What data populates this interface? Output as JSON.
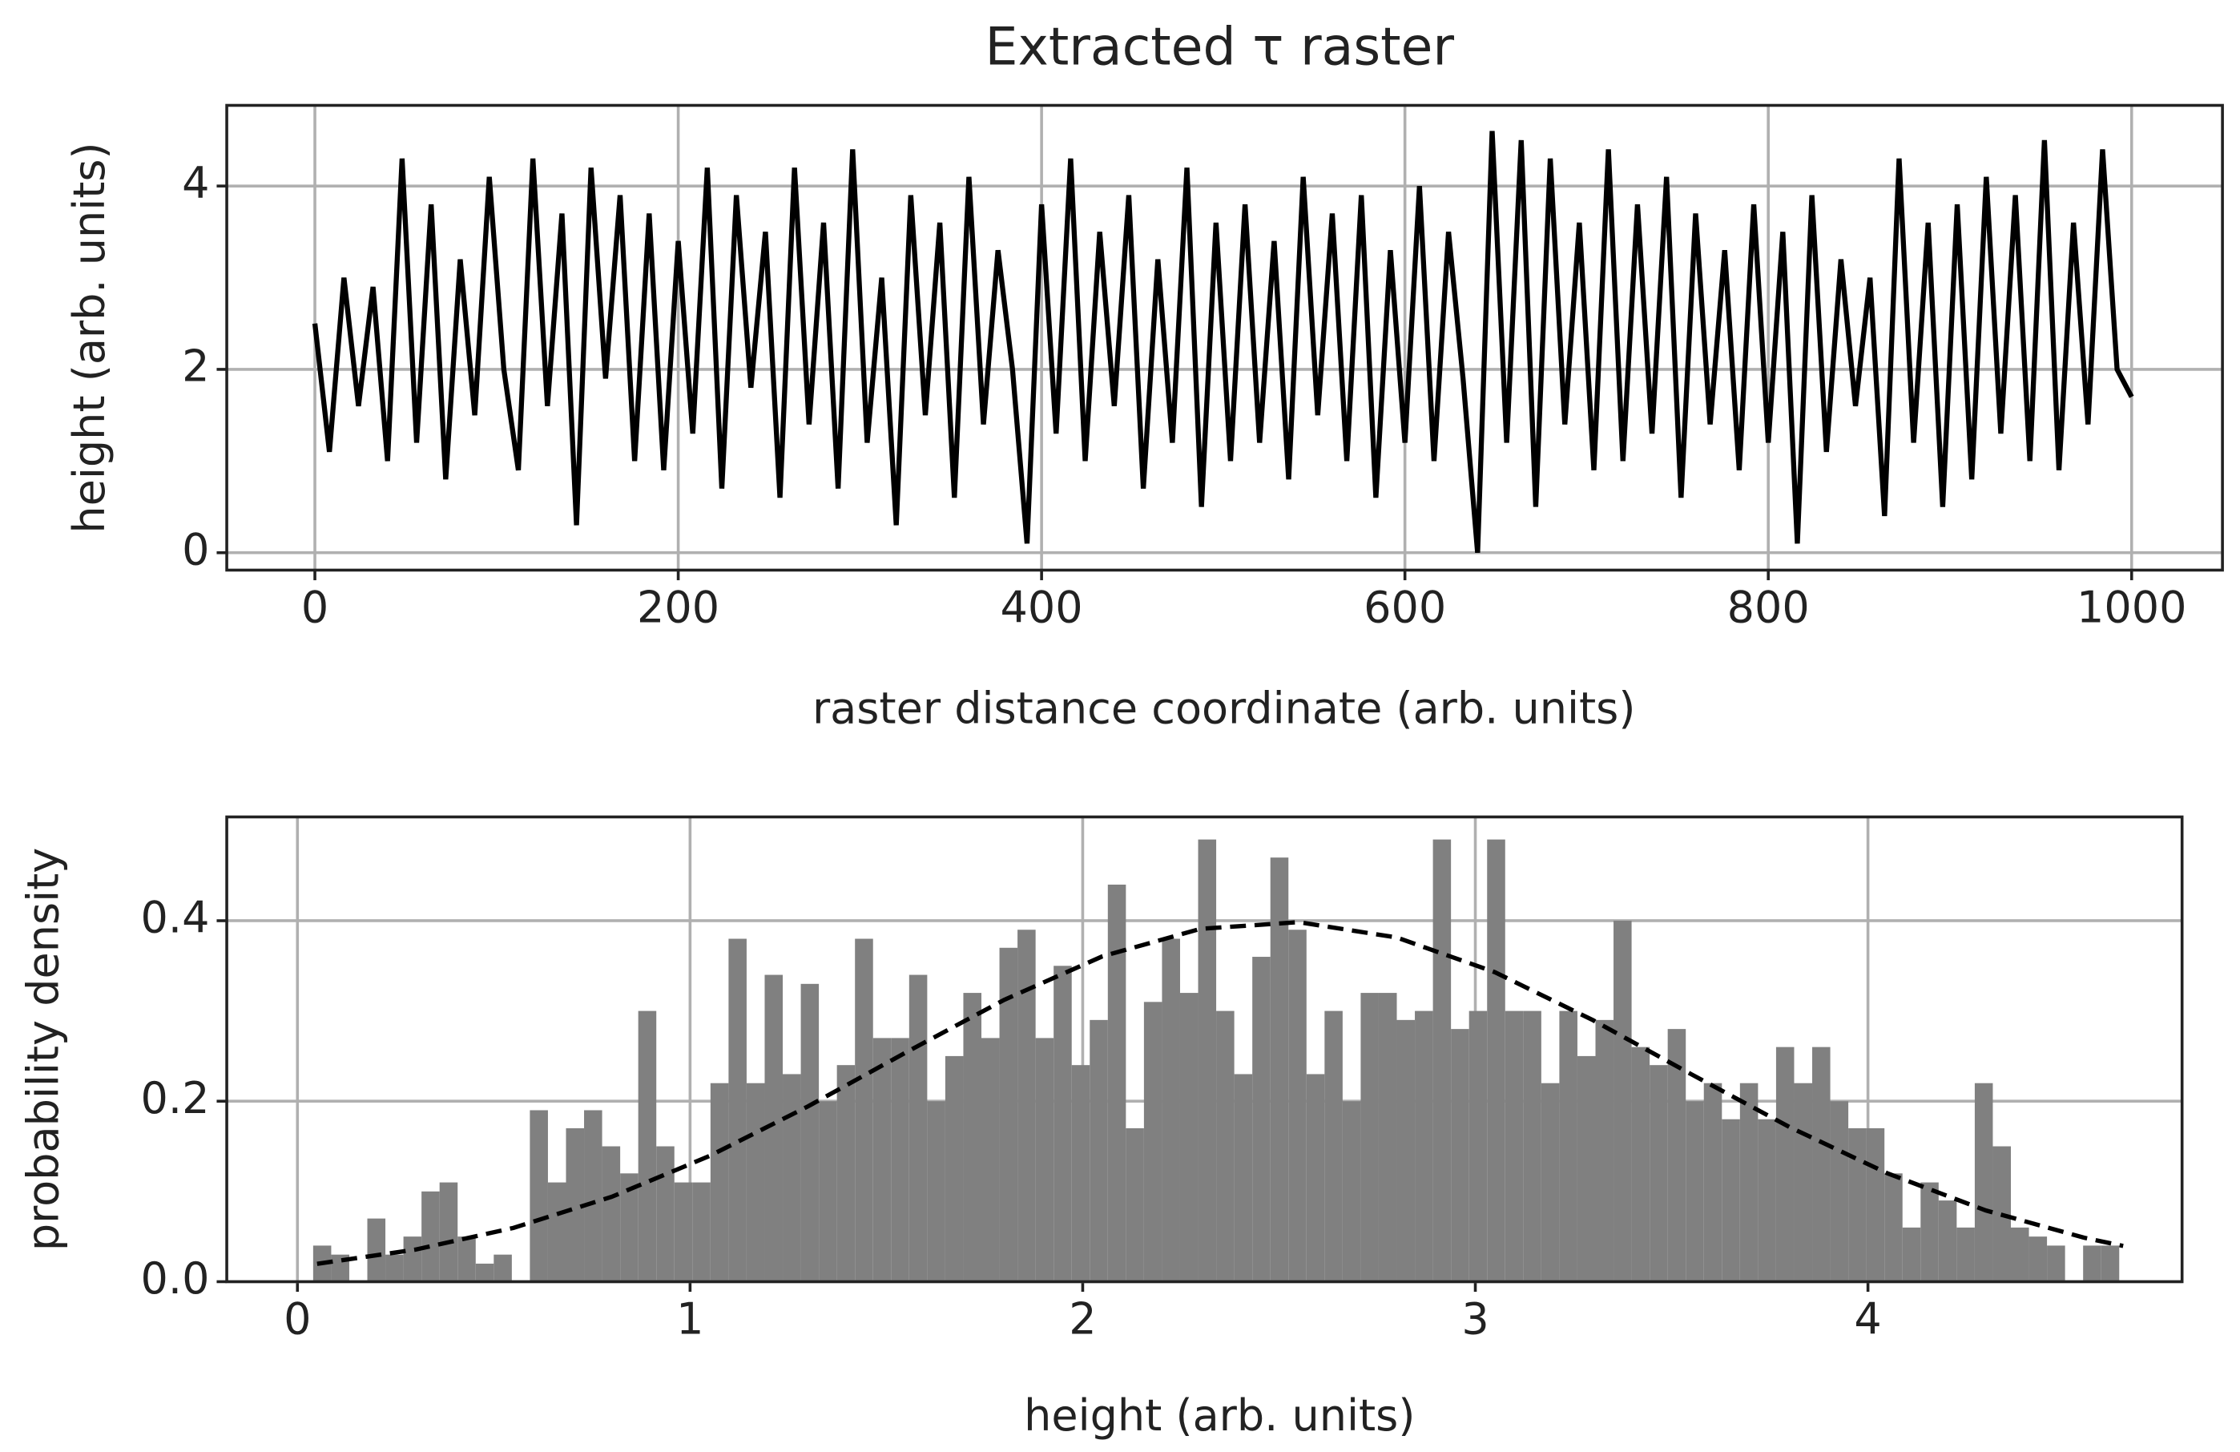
{
  "chart_data": [
    {
      "type": "line",
      "title": "Extracted τ raster",
      "xlabel": "raster distance coordinate (arb. units)",
      "ylabel": "height (arb. units)",
      "color": "#000000",
      "grid": true,
      "xlim": [
        -48.5,
        1050
      ],
      "ylim": [
        -0.19,
        4.88
      ],
      "xticks": [
        0,
        200,
        400,
        600,
        800,
        1000
      ],
      "yticks": [
        0,
        2,
        4
      ],
      "x": [
        0,
        8,
        16,
        24,
        32,
        40,
        48,
        56,
        64,
        72,
        80,
        88,
        96,
        104,
        112,
        120,
        128,
        136,
        144,
        152,
        160,
        168,
        176,
        184,
        192,
        200,
        208,
        216,
        224,
        232,
        240,
        248,
        256,
        264,
        272,
        280,
        288,
        296,
        304,
        312,
        320,
        328,
        336,
        344,
        352,
        360,
        368,
        376,
        384,
        392,
        400,
        408,
        416,
        424,
        432,
        440,
        448,
        456,
        464,
        472,
        480,
        488,
        496,
        504,
        512,
        520,
        528,
        536,
        544,
        552,
        560,
        568,
        576,
        584,
        592,
        600,
        608,
        616,
        624,
        632,
        640,
        648,
        656,
        664,
        672,
        680,
        688,
        696,
        704,
        712,
        720,
        728,
        736,
        744,
        752,
        760,
        768,
        776,
        784,
        792,
        800,
        808,
        816,
        824,
        832,
        840,
        848,
        856,
        864,
        872,
        880,
        888,
        896,
        904,
        912,
        920,
        928,
        936,
        944,
        952,
        960,
        968,
        976,
        984,
        992,
        1000
      ],
      "values": [
        2.5,
        1.1,
        3.0,
        1.6,
        2.9,
        1.0,
        4.3,
        1.2,
        3.8,
        0.8,
        3.2,
        1.5,
        4.1,
        2.0,
        0.9,
        4.3,
        1.6,
        3.7,
        0.3,
        4.2,
        1.9,
        3.9,
        1.0,
        3.7,
        0.9,
        3.4,
        1.3,
        4.2,
        0.7,
        3.9,
        1.8,
        3.5,
        0.6,
        4.2,
        1.4,
        3.6,
        0.7,
        4.4,
        1.2,
        3.0,
        0.3,
        3.9,
        1.5,
        3.6,
        0.6,
        4.1,
        1.4,
        3.3,
        2.0,
        0.1,
        3.8,
        1.3,
        4.3,
        1.0,
        3.5,
        1.6,
        3.9,
        0.7,
        3.2,
        1.2,
        4.2,
        0.5,
        3.6,
        1.0,
        3.8,
        1.2,
        3.4,
        0.8,
        4.1,
        1.5,
        3.7,
        1.0,
        3.9,
        0.6,
        3.3,
        1.2,
        4.0,
        1.0,
        3.5,
        1.9,
        0.0,
        4.6,
        1.2,
        4.5,
        0.5,
        4.3,
        1.4,
        3.6,
        0.9,
        4.4,
        1.0,
        3.8,
        1.3,
        4.1,
        0.6,
        3.7,
        1.4,
        3.3,
        0.9,
        3.8,
        1.2,
        3.5,
        0.1,
        3.9,
        1.1,
        3.2,
        1.6,
        3.0,
        0.4,
        4.3,
        1.2,
        3.6,
        0.5,
        3.8,
        0.8,
        4.1,
        1.3,
        3.9,
        1.0,
        4.5,
        0.9,
        3.6,
        1.4,
        4.4,
        2.0,
        1.7
      ]
    },
    {
      "type": "histogram",
      "xlabel": "height (arb. units)",
      "ylabel": "probability density",
      "color": "#808080",
      "grid": true,
      "xlim": [
        -0.18,
        4.8
      ],
      "ylim": [
        0,
        0.515
      ],
      "xticks": [
        0,
        1,
        2,
        3,
        4
      ],
      "yticks": [
        {
          "value": 0,
          "label": "0.0"
        },
        0.2,
        0.4
      ],
      "bins": [
        0.04,
        0.086,
        0.132,
        0.178,
        0.224,
        0.27,
        0.316,
        0.362,
        0.408,
        0.454,
        0.5,
        0.546,
        0.592,
        0.638,
        0.684,
        0.73,
        0.776,
        0.822,
        0.868,
        0.914,
        0.96,
        1.006,
        1.052,
        1.098,
        1.144,
        1.19,
        1.236,
        1.282,
        1.328,
        1.374,
        1.42,
        1.466,
        1.512,
        1.558,
        1.604,
        1.65,
        1.696,
        1.742,
        1.788,
        1.834,
        1.88,
        1.926,
        1.972,
        2.018,
        2.064,
        2.11,
        2.156,
        2.202,
        2.248,
        2.294,
        2.34,
        2.386,
        2.432,
        2.478,
        2.524,
        2.57,
        2.616,
        2.662,
        2.708,
        2.754,
        2.8,
        2.846,
        2.892,
        2.938,
        2.984,
        3.03,
        3.076,
        3.122,
        3.168,
        3.214,
        3.26,
        3.306,
        3.352,
        3.398,
        3.444,
        3.49,
        3.536,
        3.582,
        3.628,
        3.674,
        3.72,
        3.766,
        3.812,
        3.858,
        3.904,
        3.95,
        3.996,
        4.042,
        4.088,
        4.134,
        4.18,
        4.226,
        4.272,
        4.318,
        4.364,
        4.41,
        4.456,
        4.502,
        4.548,
        4.594,
        4.64
      ],
      "values": [
        0.04,
        0.03,
        0.0,
        0.07,
        0.03,
        0.05,
        0.1,
        0.11,
        0.05,
        0.02,
        0.03,
        0.0,
        0.19,
        0.11,
        0.17,
        0.19,
        0.15,
        0.12,
        0.3,
        0.15,
        0.11,
        0.11,
        0.22,
        0.38,
        0.22,
        0.34,
        0.23,
        0.33,
        0.2,
        0.24,
        0.38,
        0.27,
        0.27,
        0.34,
        0.2,
        0.25,
        0.32,
        0.27,
        0.37,
        0.39,
        0.27,
        0.35,
        0.24,
        0.29,
        0.44,
        0.17,
        0.31,
        0.38,
        0.32,
        0.49,
        0.3,
        0.23,
        0.36,
        0.47,
        0.39,
        0.23,
        0.3,
        0.2,
        0.32,
        0.32,
        0.29,
        0.3,
        0.49,
        0.28,
        0.3,
        0.49,
        0.3,
        0.3,
        0.22,
        0.3,
        0.25,
        0.29,
        0.4,
        0.26,
        0.24,
        0.28,
        0.2,
        0.22,
        0.18,
        0.22,
        0.18,
        0.26,
        0.22,
        0.26,
        0.2,
        0.17,
        0.17,
        0.12,
        0.06,
        0.11,
        0.09,
        0.06,
        0.22,
        0.15,
        0.06,
        0.05,
        0.04,
        0.0,
        0.04,
        0.04
      ],
      "fit": {
        "color": "#000000",
        "dashed": true,
        "x": [
          0.05,
          0.3,
          0.55,
          0.8,
          1.05,
          1.3,
          1.55,
          1.8,
          2.05,
          2.3,
          2.55,
          2.8,
          3.05,
          3.3,
          3.55,
          3.8,
          4.05,
          4.3,
          4.55,
          4.65
        ],
        "values": [
          0.0198,
          0.0355,
          0.0596,
          0.094,
          0.1394,
          0.1942,
          0.2541,
          0.3123,
          0.3605,
          0.391,
          0.3984,
          0.3814,
          0.3429,
          0.2897,
          0.2299,
          0.1714,
          0.12,
          0.079,
          0.0488,
          0.0396
        ]
      }
    }
  ]
}
